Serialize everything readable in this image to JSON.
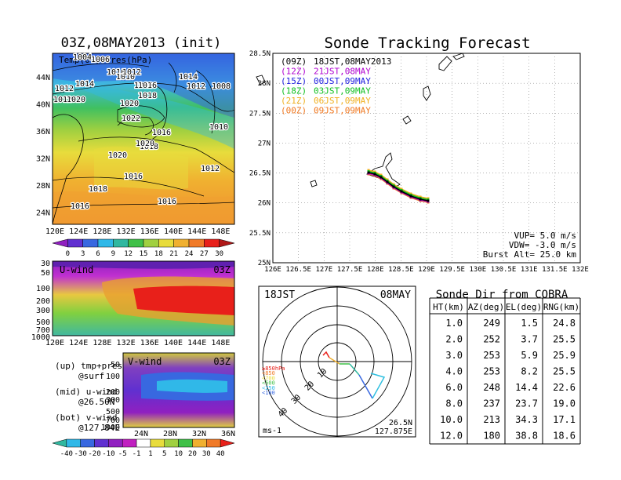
{
  "colors": {
    "red": "#e8201a",
    "orange": "#f07a28",
    "yellow_orange": "#f0b030",
    "yellow": "#e8dc3c",
    "lime": "#a0d040",
    "green": "#40c048",
    "teal": "#30b8a0",
    "cyan": "#30b8e8",
    "blue": "#3868e0",
    "violet": "#6030d0",
    "purple": "#9020c0",
    "magenta": "#c020c0",
    "track_12z": "#b000d0",
    "track_15z": "#2020e0",
    "track_18z": "#10c020",
    "track_21z": "#f0b020",
    "track_00z": "#f07820"
  },
  "left_panel": {
    "title": "03Z,08MAY2013 (init)",
    "map_label": "Temp(0C) Pres(hPa)",
    "lat_ticks": [
      "44N",
      "40N",
      "36N",
      "32N",
      "28N",
      "24N"
    ],
    "lon_ticks": [
      "120E",
      "124E",
      "128E",
      "132E",
      "136E",
      "140E",
      "144E",
      "148E"
    ],
    "pressure_labels": [
      "1004",
      "1006",
      "1010",
      "1010",
      "1012",
      "1014",
      "1016",
      "1014",
      "1008",
      "1012",
      "1012",
      "1016",
      "1018",
      "1012",
      "1020",
      "1020",
      "1022",
      "1016",
      "1010",
      "1018",
      "1020",
      "1016",
      "1012",
      "1020",
      "1018",
      "1016",
      "1016"
    ],
    "colorbar_ticks": [
      "0",
      "3",
      "6",
      "9",
      "12",
      "15",
      "18",
      "21",
      "24",
      "27",
      "30"
    ]
  },
  "u_panel": {
    "label": "U-wind",
    "time": "03Z",
    "levels": [
      "30",
      "50",
      "100",
      "200",
      "300",
      "500",
      "700",
      "1000"
    ],
    "lon_ticks": [
      "120E",
      "124E",
      "128E",
      "132E",
      "136E",
      "140E",
      "144E",
      "148E"
    ]
  },
  "v_panel": {
    "label": "V-wind",
    "time": "03Z",
    "levels": [
      "50",
      "100",
      "200",
      "300",
      "500",
      "700",
      "1000"
    ],
    "lat_ticks": [
      "24N",
      "28N",
      "32N",
      "36N"
    ]
  },
  "legend_notes": {
    "up1": "(up) tmp+pres",
    "up2": "@surf",
    "mid1": "(mid) u-wind",
    "mid2": "@26.50N",
    "bot1": "(bot) v-wind",
    "bot2": "@127.84E"
  },
  "bottom_colorbar_ticks": [
    "-40",
    "-30",
    "-20",
    "-10",
    "-5",
    "-1",
    "1",
    "5",
    "10",
    "20",
    "30",
    "40"
  ],
  "track_panel": {
    "title": "Sonde Tracking Forecast",
    "legend": [
      {
        "code": "(09Z)",
        "text": "18JST,08MAY2013",
        "color": "#000000"
      },
      {
        "code": "(12Z)",
        "text": "21JST,08MAY",
        "color": "#b000d0"
      },
      {
        "code": "(15Z)",
        "text": "00JST,09MAY",
        "color": "#2020e0"
      },
      {
        "code": "(18Z)",
        "text": "03JST,09MAY",
        "color": "#10c020"
      },
      {
        "code": "(21Z)",
        "text": "06JST,09MAY",
        "color": "#f0b020"
      },
      {
        "code": "(00Z)",
        "text": "09JST,09MAY",
        "color": "#f07820"
      }
    ],
    "lat_ticks": [
      "28.5N",
      "28N",
      "27.5N",
      "27N",
      "26.5N",
      "26N",
      "25.5N",
      "25N"
    ],
    "lon_ticks": [
      "126E",
      "126.5E",
      "127E",
      "127.5E",
      "128E",
      "128.5E",
      "129E",
      "129.5E",
      "130E",
      "130.5E",
      "131E",
      "131.5E",
      "132E"
    ],
    "vup": "VUP= 5.0 m/s",
    "vdw": "VDW= -3.0 m/s",
    "burst": "Burst Alt= 25.0 km"
  },
  "polar_panel": {
    "time_label": "18JST",
    "date_label": "08MAY",
    "ring_labels": [
      "10",
      "20",
      "30",
      "40"
    ],
    "unit": "ms-1",
    "loc_lat": "26.5N",
    "loc_lon": "127.875E",
    "pressure_legend": [
      "≥850hPa",
      "<850",
      "<700",
      "<500",
      "<250",
      "<100"
    ]
  },
  "chart_data": {
    "type": "table",
    "title": "Sonde Dir from COBRA",
    "columns": [
      "HT(km)",
      "AZ(deg)",
      "EL(deg)",
      "RNG(km)"
    ],
    "rows": [
      [
        "1.0",
        "249",
        "1.5",
        "24.8"
      ],
      [
        "2.0",
        "252",
        "3.7",
        "25.5"
      ],
      [
        "3.0",
        "253",
        "5.9",
        "25.9"
      ],
      [
        "4.0",
        "253",
        "8.2",
        "25.5"
      ],
      [
        "6.0",
        "248",
        "14.4",
        "22.6"
      ],
      [
        "8.0",
        "237",
        "23.7",
        "19.0"
      ],
      [
        "10.0",
        "213",
        "34.3",
        "17.1"
      ],
      [
        "12.0",
        "180",
        "38.8",
        "18.6"
      ]
    ]
  }
}
